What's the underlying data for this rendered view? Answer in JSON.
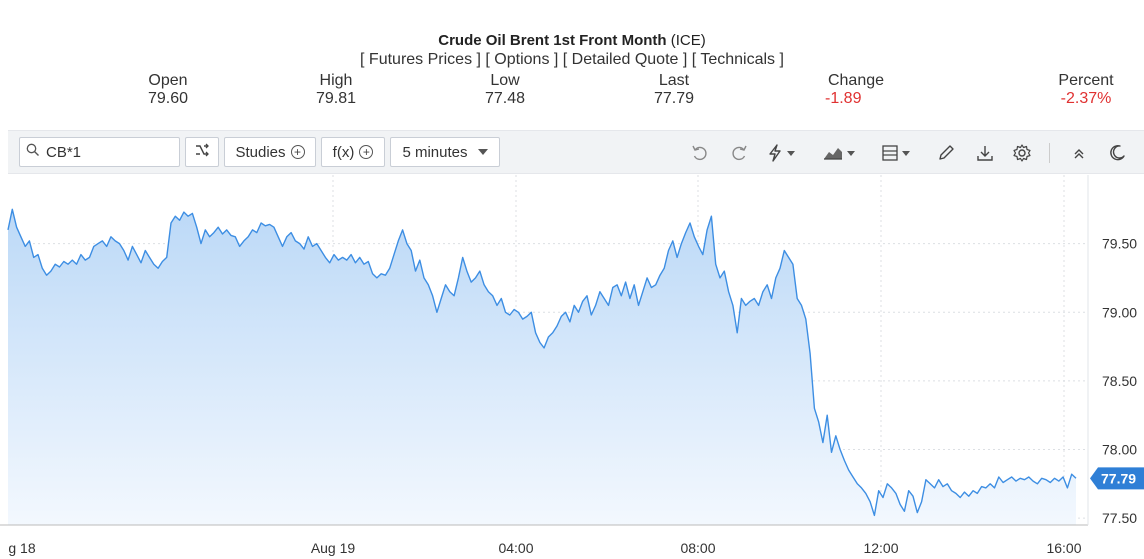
{
  "header": {
    "title": "Crude Oil Brent 1st Front Month",
    "exchange": "(ICE)",
    "links": [
      "[ Futures Prices ]",
      "[ Options ]",
      "[ Detailed Quote ]",
      "[ Technicals ]"
    ]
  },
  "quote": {
    "open_label": "Open",
    "open": "79.60",
    "high_label": "High",
    "high": "79.81",
    "low_label": "Low",
    "low": "77.48",
    "last_label": "Last",
    "last": "77.79",
    "change_label": "Change",
    "change": "-1.89",
    "percent_label": "Percent",
    "percent": "-2.37%"
  },
  "toolbar": {
    "symbol": "CB*1",
    "studies_label": "Studies",
    "fx_label": "f(x)",
    "interval_label": "5 minutes",
    "icons": [
      "undo-icon",
      "redo-icon",
      "lightning-icon",
      "chart-type-icon",
      "layout-icon",
      "pencil-icon",
      "download-icon",
      "gear-icon",
      "collapse-icon",
      "dark-mode-icon"
    ]
  },
  "colors": {
    "line": "#3d8ee3",
    "fill_top": "#bcd9f7",
    "fill_bottom": "#f3f8fe",
    "last_badge": "#2f7fd6",
    "negative": "#e03131",
    "grid": "#dcdfe3"
  },
  "chart_data": {
    "type": "area",
    "x_ticks": [
      "g 18",
      "Aug 19",
      "04:00",
      "08:00",
      "12:00",
      "16:00"
    ],
    "y_ticks": [
      "79.50",
      "79.00",
      "78.50",
      "78.00",
      "77.50"
    ],
    "ylim": [
      77.45,
      80.0
    ],
    "last_value": "77.79",
    "grid": true,
    "series": [
      {
        "values": [
          79.6,
          79.75,
          79.62,
          79.55,
          79.48,
          79.52,
          79.4,
          79.42,
          79.32,
          79.27,
          79.3,
          79.35,
          79.33,
          79.37,
          79.35,
          79.38,
          79.35,
          79.42,
          79.38,
          79.4,
          79.48,
          79.5,
          79.52,
          79.48,
          79.55,
          79.52,
          79.5,
          79.45,
          79.38,
          79.48,
          79.42,
          79.36,
          79.45,
          79.4,
          79.35,
          79.32,
          79.37,
          79.4,
          79.65,
          79.7,
          79.67,
          79.73,
          79.7,
          79.72,
          79.62,
          79.5,
          79.6,
          79.55,
          79.58,
          79.62,
          79.57,
          79.6,
          79.56,
          79.55,
          79.48,
          79.52,
          79.55,
          79.6,
          79.58,
          79.65,
          79.63,
          79.64,
          79.62,
          79.55,
          79.48,
          79.55,
          79.58,
          79.52,
          79.5,
          79.46,
          79.55,
          79.48,
          79.5,
          79.45,
          79.4,
          79.36,
          79.42,
          79.38,
          79.4,
          79.38,
          79.42,
          79.36,
          79.4,
          79.35,
          79.37,
          79.28,
          79.25,
          79.28,
          79.27,
          79.32,
          79.42,
          79.52,
          79.6,
          79.5,
          79.45,
          79.3,
          79.38,
          79.25,
          79.2,
          79.12,
          79.0,
          79.1,
          79.2,
          79.15,
          79.12,
          79.25,
          79.4,
          79.3,
          79.22,
          79.25,
          79.3,
          79.2,
          79.15,
          79.12,
          79.05,
          79.1,
          79.0,
          78.98,
          79.02,
          79.0,
          78.95,
          78.97,
          79.0,
          78.85,
          78.78,
          78.74,
          78.82,
          78.85,
          78.9,
          78.97,
          79.0,
          78.93,
          79.05,
          79.0,
          79.08,
          79.12,
          78.98,
          79.05,
          79.15,
          79.1,
          79.05,
          79.18,
          79.2,
          79.12,
          79.22,
          79.1,
          79.2,
          79.05,
          79.15,
          79.25,
          79.18,
          79.2,
          79.27,
          79.32,
          79.45,
          79.52,
          79.4,
          79.5,
          79.58,
          79.65,
          79.55,
          79.48,
          79.42,
          79.6,
          79.7,
          79.35,
          79.25,
          79.3,
          79.15,
          79.05,
          78.85,
          79.1,
          79.05,
          79.08,
          79.1,
          79.05,
          79.15,
          79.2,
          79.1,
          79.25,
          79.32,
          79.45,
          79.4,
          79.35,
          79.1,
          79.05,
          78.95,
          78.7,
          78.3,
          78.2,
          78.05,
          78.25,
          77.98,
          78.1,
          78.0,
          77.92,
          77.85,
          77.8,
          77.75,
          77.72,
          77.68,
          77.62,
          77.52,
          77.7,
          77.65,
          77.75,
          77.72,
          77.68,
          77.6,
          77.55,
          77.7,
          77.66,
          77.54,
          77.62,
          77.78,
          77.75,
          77.72,
          77.78,
          77.73,
          77.75,
          77.7,
          77.68,
          77.65,
          77.69,
          77.66,
          77.7,
          77.68,
          77.73,
          77.72,
          77.75,
          77.72,
          77.8,
          77.76,
          77.78,
          77.8,
          77.77,
          77.79,
          77.78,
          77.8,
          77.77,
          77.75,
          77.79,
          77.78,
          77.76,
          77.79,
          77.77,
          77.8,
          77.72,
          77.82,
          77.79
        ]
      }
    ]
  }
}
